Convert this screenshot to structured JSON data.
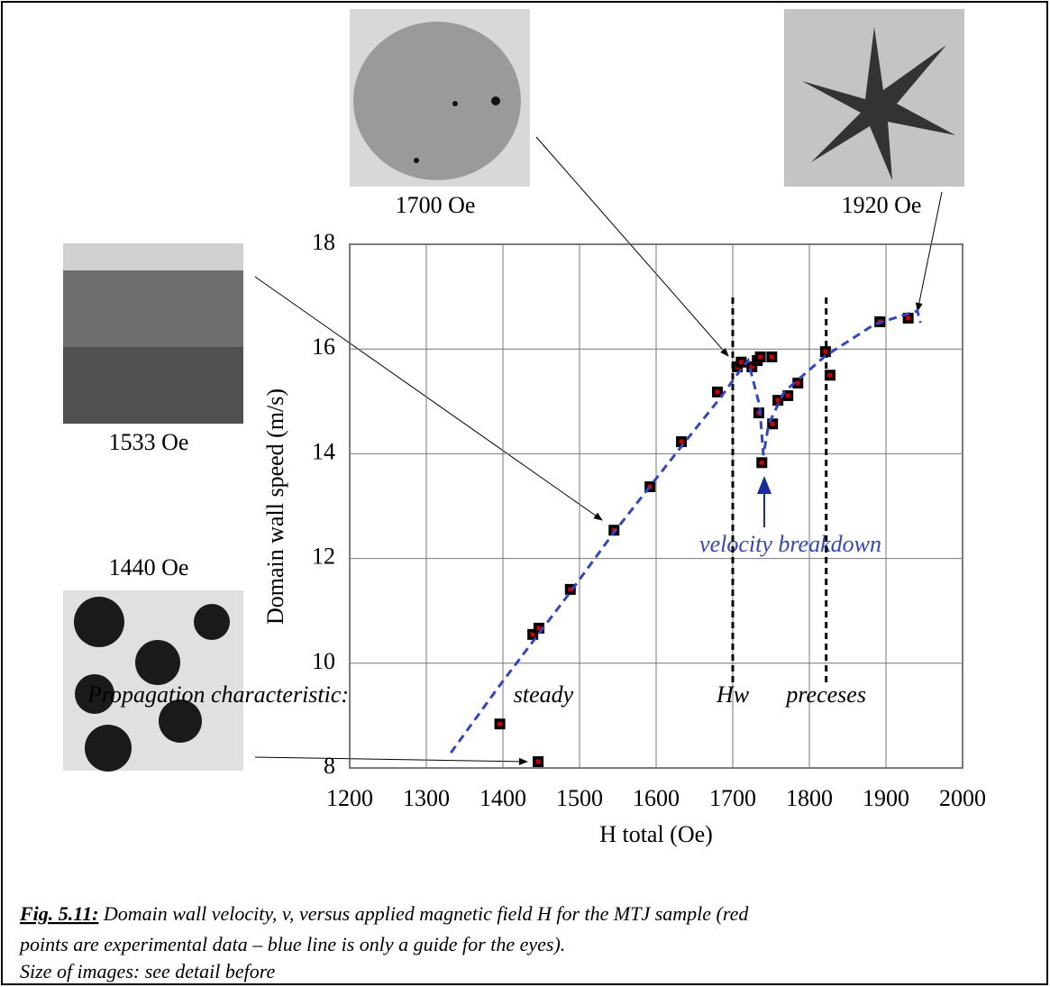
{
  "chart_data": {
    "type": "scatter",
    "xlabel": "H total (Oe)",
    "ylabel": "Domain wall speed (m/s)",
    "xlim": [
      1200,
      2000
    ],
    "xticks": [
      1200,
      1300,
      1400,
      1500,
      1600,
      1700,
      1800,
      1900,
      2000
    ],
    "ylim": [
      8,
      18
    ],
    "yticks": [
      8,
      10,
      12,
      14,
      16,
      18
    ],
    "grid": true,
    "series": [
      {
        "color": "#d00000",
        "x": [
          1396,
          1446,
          1439,
          1447,
          1488,
          1545,
          1592,
          1633,
          1680,
          1706,
          1711,
          1725,
          1732,
          1736,
          1751,
          1734,
          1738,
          1752,
          1759,
          1772,
          1785,
          1821,
          1827,
          1892,
          1929
        ],
        "values": [
          8.84,
          8.12,
          10.55,
          10.67,
          11.41,
          12.54,
          13.37,
          14.23,
          15.18,
          15.66,
          15.75,
          15.66,
          15.78,
          15.85,
          15.85,
          14.78,
          13.83,
          14.57,
          15.02,
          15.11,
          15.35,
          15.95,
          15.5,
          16.52,
          16.59
        ]
      },
      {
        "color": "#3344cc",
        "style": "dashed",
        "x": [
          1332,
          1396,
          1488,
          1545,
          1633,
          1685,
          1706,
          1720,
          1735,
          1740,
          1747,
          1767,
          1821,
          1885,
          1941,
          1945
        ],
        "values": [
          8.29,
          9.58,
          11.36,
          12.5,
          14.14,
          15.09,
          15.52,
          15.78,
          14.92,
          13.97,
          14.57,
          15.18,
          15.87,
          16.47,
          16.73,
          16.5
        ]
      }
    ],
    "vlines": [
      {
        "value": 1700,
        "label": "Hw"
      },
      {
        "value": 1822,
        "label": "preceses"
      }
    ],
    "annotation": "velocity breakdown",
    "images": [
      "1700 Oe",
      "1920 Oe",
      "1533 Oe",
      "1440 Oe"
    ],
    "propagation_label": "Propagation characteristic:",
    "steady_label": "steady",
    "caption": {
      "figure": "Fig. 5.11:",
      "lines": [
        " Domain wall velocity, v, versus applied magnetic field H for the MTJ sample (red",
        "points are experimental data – blue line is only a guide for the eyes).",
        "Size of  images: see detail before"
      ]
    }
  }
}
